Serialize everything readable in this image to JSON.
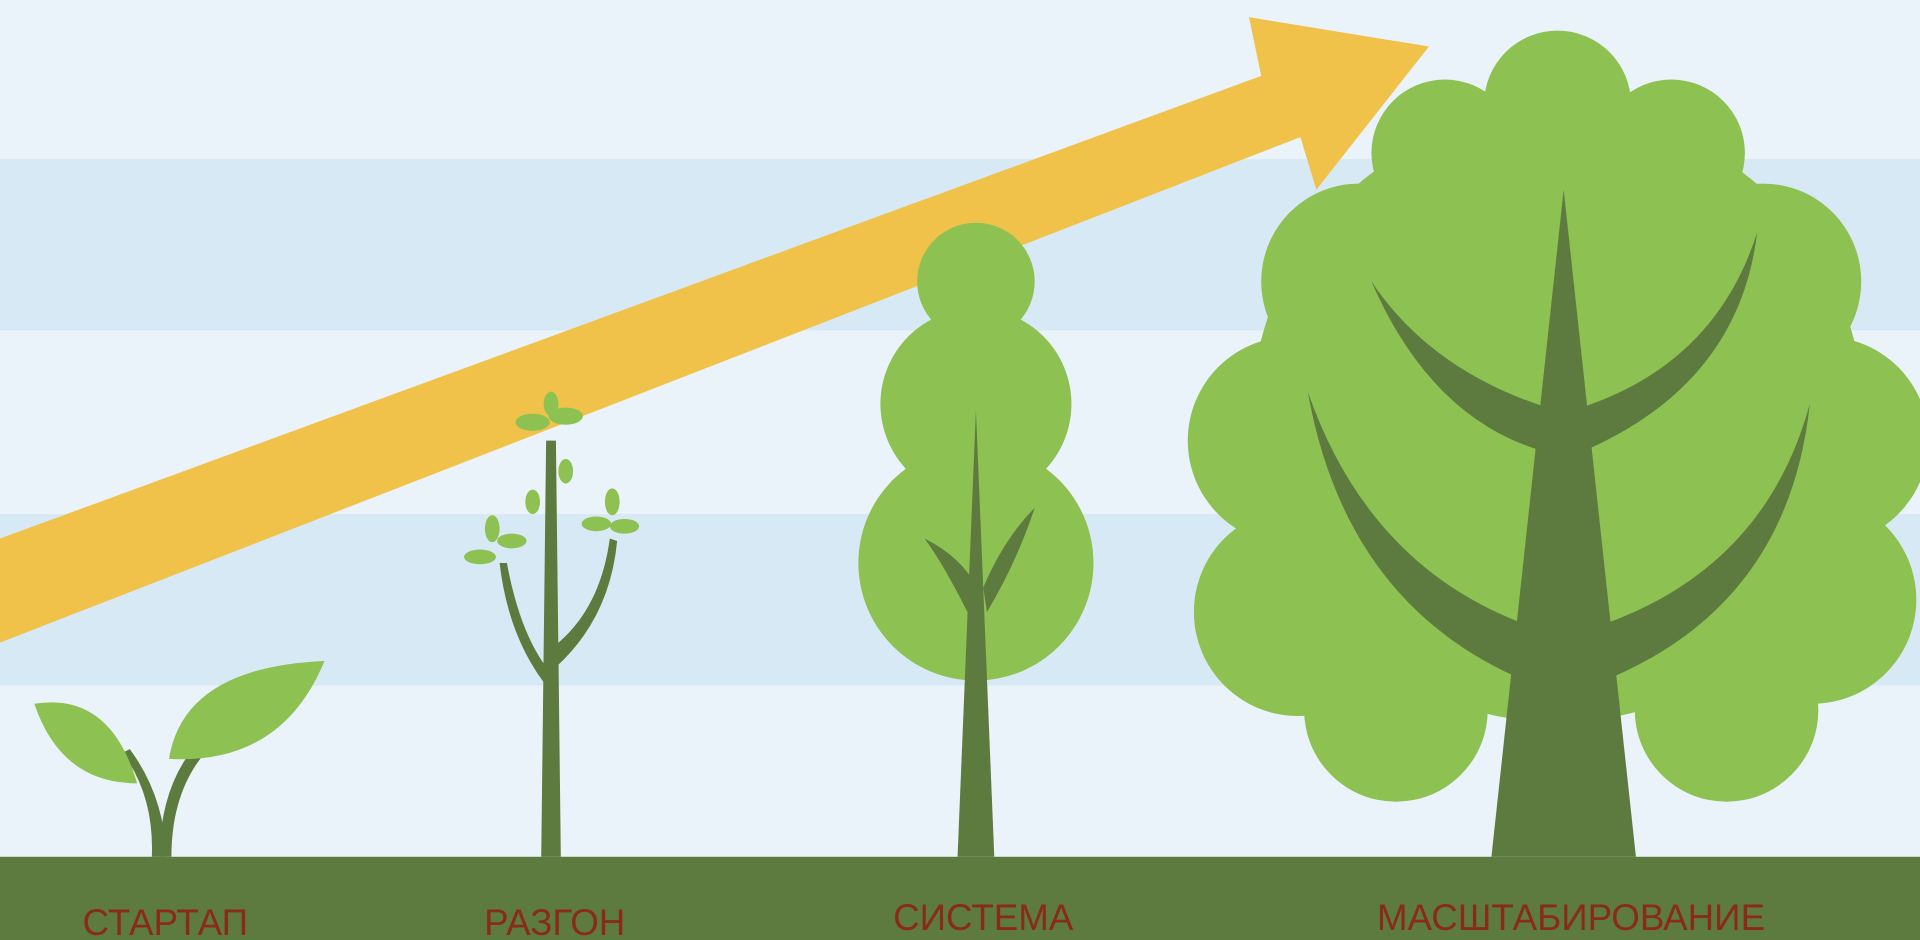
{
  "stages": [
    {
      "label": "СТАРТАП"
    },
    {
      "label": "РАЗГОН"
    },
    {
      "label": "СИСТЕМА"
    },
    {
      "label": "МАСШТАБИРОВАНИЕ"
    }
  ]
}
